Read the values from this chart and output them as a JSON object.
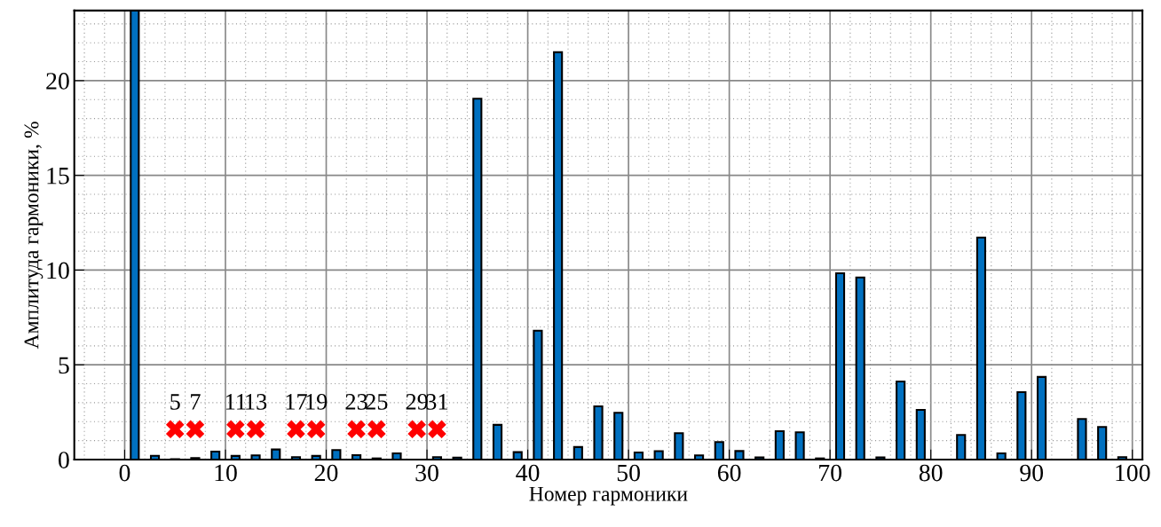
{
  "chart_data": {
    "type": "bar",
    "xlabel": "Номер гармоники",
    "ylabel": "Амплитуда гармоники, %",
    "x": [
      1,
      3,
      5,
      7,
      9,
      11,
      13,
      15,
      17,
      19,
      21,
      23,
      25,
      27,
      29,
      31,
      33,
      35,
      37,
      39,
      41,
      43,
      45,
      47,
      49,
      51,
      53,
      55,
      57,
      59,
      61,
      63,
      65,
      67,
      69,
      71,
      73,
      75,
      77,
      79,
      81,
      83,
      85,
      87,
      89,
      91,
      93,
      95,
      97,
      99
    ],
    "series": [
      {
        "color": "#0070c0",
        "values": [
          23.7,
          0.2,
          0.02,
          0.08,
          0.42,
          0.19,
          0.22,
          0.53,
          0.13,
          0.19,
          0.5,
          0.23,
          0.06,
          0.33,
          null,
          0.13,
          0.1,
          19.05,
          1.83,
          0.39,
          6.8,
          21.5,
          0.66,
          2.81,
          2.47,
          0.37,
          0.44,
          1.39,
          0.22,
          0.92,
          0.45,
          0.11,
          1.5,
          1.44,
          0.06,
          9.83,
          9.61,
          0.11,
          4.12,
          2.62,
          null,
          1.3,
          11.72,
          0.33,
          3.56,
          4.36,
          null,
          2.14,
          1.72,
          0.13
        ]
      },
      {
        "type": "scatter",
        "color": "#ff0000",
        "marker": "cross",
        "x": [
          5,
          7,
          11,
          13,
          17,
          19,
          23,
          25,
          29,
          31
        ],
        "values": [
          1.6,
          1.6,
          1.6,
          1.6,
          1.6,
          1.6,
          1.6,
          1.6,
          1.6,
          1.6
        ]
      }
    ],
    "annotations": [
      {
        "text": "5",
        "x": 5,
        "y": 1.6
      },
      {
        "text": "7",
        "x": 7,
        "y": 1.6
      },
      {
        "text": "11",
        "x": 11,
        "y": 1.6
      },
      {
        "text": "13",
        "x": 13,
        "y": 1.6
      },
      {
        "text": "17",
        "x": 17,
        "y": 1.6
      },
      {
        "text": "19",
        "x": 19,
        "y": 1.6
      },
      {
        "text": "23",
        "x": 23,
        "y": 1.6
      },
      {
        "text": "25",
        "x": 25,
        "y": 1.6
      },
      {
        "text": "29",
        "x": 29,
        "y": 1.6
      },
      {
        "text": "31",
        "x": 31,
        "y": 1.6
      }
    ],
    "xlim": [
      -5,
      101
    ],
    "xticks": [
      0,
      10,
      20,
      30,
      40,
      50,
      60,
      70,
      80,
      90,
      100
    ],
    "ylim": [
      0,
      23.7
    ],
    "yticks": [
      0,
      5,
      10,
      15,
      20
    ],
    "grid": true,
    "legend": false
  }
}
